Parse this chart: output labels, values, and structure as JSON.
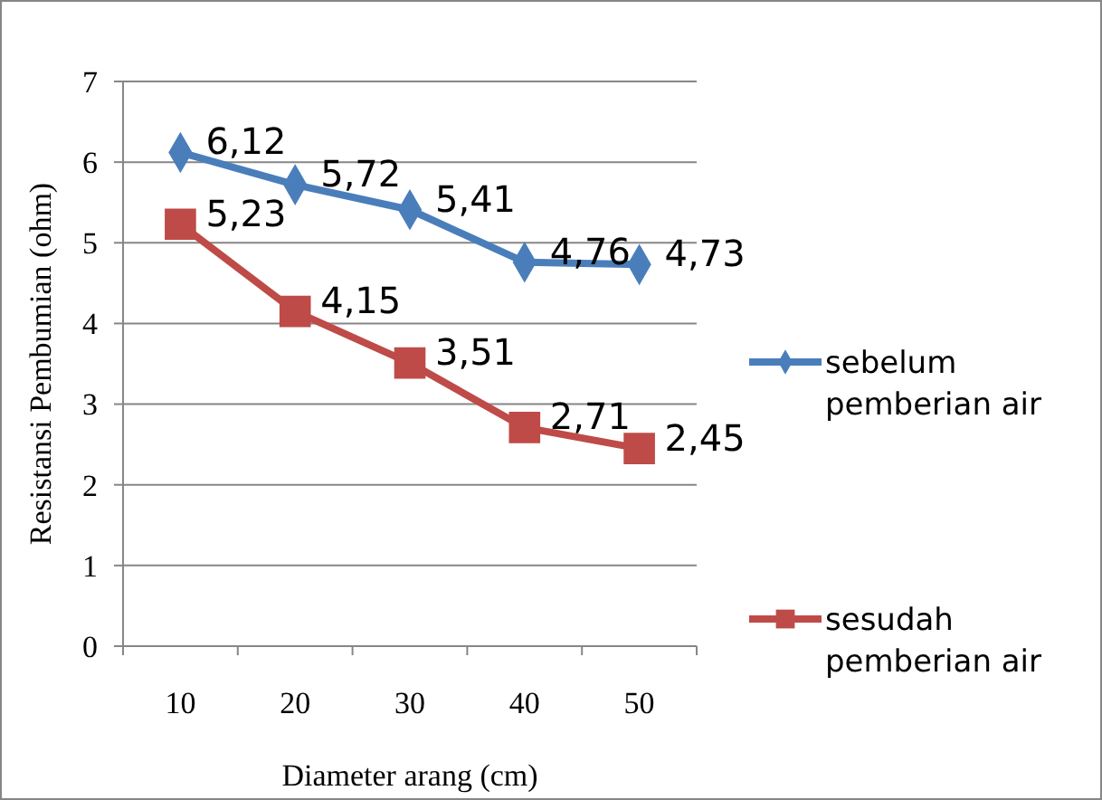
{
  "chart_data": {
    "type": "line",
    "xlabel": "Diameter arang (cm)",
    "ylabel": "Resistansi Pembumian (ohm)",
    "categories": [
      "10",
      "20",
      "30",
      "40",
      "50"
    ],
    "ylim": [
      0,
      7
    ],
    "yticks": [
      0,
      1,
      2,
      3,
      4,
      5,
      6,
      7
    ],
    "grid": "y",
    "legend": "right",
    "line_style": "solid",
    "series": [
      {
        "name": "sebelum pemberian air",
        "color": "#4a7ebb",
        "marker": "diamond",
        "values": [
          6.12,
          5.72,
          5.41,
          4.76,
          4.73
        ],
        "value_labels": [
          "6,12",
          "5,72",
          "5,41",
          "4,76",
          "4,73"
        ]
      },
      {
        "name": "sesudah pemberian air",
        "color": "#be4b48",
        "marker": "square",
        "values": [
          5.23,
          4.15,
          3.51,
          2.71,
          2.45
        ],
        "value_labels": [
          "5,23",
          "4,15",
          "3,51",
          "2,71",
          "2,45"
        ]
      }
    ]
  }
}
